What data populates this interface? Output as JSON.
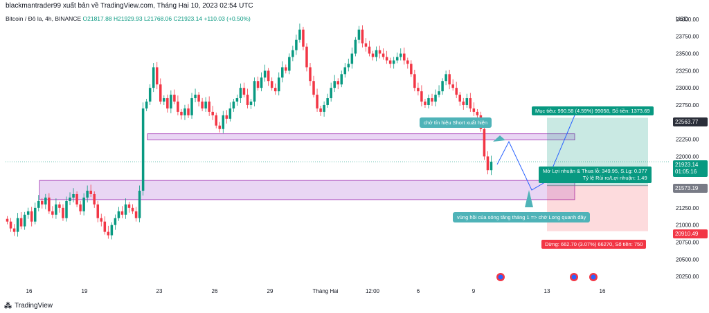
{
  "header": {
    "published": "blackmantrader99 xuất bản về TradingView.com, Tháng Hai 10, 2023 02:54 UTC",
    "symbol": "Bitcoin / Đô la, 4h, BINANCE",
    "o": "O21817.88",
    "h": "H21929.93",
    "l": "L21768.06",
    "c": "C21923.14",
    "chg": "+110.03 (+0.50%)"
  },
  "axis": {
    "currency": "USD",
    "y_ticks": [
      "24000.00",
      "23750.00",
      "23500.00",
      "23250.00",
      "23000.00",
      "22750.00",
      "22500.00",
      "22250.00",
      "22000.00",
      "21750.00",
      "21500.00",
      "21250.00",
      "21000.00",
      "20750.00",
      "20500.00",
      "20250.00"
    ],
    "x_ticks": [
      "16",
      "19",
      "23",
      "26",
      "29",
      "Tháng Hai",
      "12:00",
      "6",
      "9",
      "13",
      "16"
    ]
  },
  "price_tags": {
    "target": "22563.77",
    "current": "21923.14",
    "countdown": "01:05:16",
    "mid": "21573.19",
    "stop": "20910.49"
  },
  "position": {
    "target_label": "Mục tiêu: 990.58 (4.59%) 99058, Số tiền: 1373.69",
    "pnl_label": "Mở Lợi nhuận & Thua lỗ: 349.95, S.Lg: 0.377",
    "ratio_label": "Tỷ lệ Rủi ro/Lợi nhuận: 1.49",
    "stop_label": "Dừng: 662.70 (3.07%) 66270, Số tiền: 750"
  },
  "annotations": {
    "short_note": "chờ tín hiệu Short xuất hiện",
    "long_note": "vùng hồi của sóng tăng tháng 1 => chờ Long quanh đây"
  },
  "footer": {
    "brand": "TradingView"
  },
  "colors": {
    "up": "#089981",
    "down": "#f23645",
    "zone": "#e1c8f0",
    "zone_border": "#9c27b0",
    "target": "#089981",
    "stop": "#f23645",
    "note": "#4fb3b8"
  },
  "chart_data": {
    "type": "candlestick",
    "symbol": "BTCUSD",
    "timeframe": "4h",
    "ylim": [
      20150,
      24100
    ],
    "zones": [
      {
        "from": 22240,
        "to": 22330
      },
      {
        "from": 21370,
        "to": 21650
      }
    ],
    "position": {
      "entry": 21573.19,
      "target": 22563.77,
      "stop": 20910.49
    },
    "closes": [
      21050,
      20950,
      20900,
      21100,
      20980,
      21150,
      21200,
      21050,
      21250,
      21350,
      21300,
      21400,
      21200,
      21150,
      21300,
      21250,
      21100,
      21350,
      21400,
      21450,
      21300,
      21200,
      21400,
      21500,
      21450,
      21300,
      21100,
      21050,
      20900,
      20850,
      21000,
      21100,
      21200,
      21150,
      21300,
      21250,
      21200,
      21100,
      21500,
      22700,
      22800,
      23000,
      23300,
      23050,
      22800,
      22850,
      22700,
      22900,
      22800,
      22650,
      22600,
      22700,
      22600,
      22850,
      22900,
      22800,
      22700,
      22800,
      22650,
      22600,
      22450,
      22400,
      22600,
      22550,
      22700,
      22800,
      22850,
      23000,
      22900,
      22750,
      22800,
      23100,
      23000,
      23150,
      23250,
      23100,
      23000,
      22950,
      23150,
      23300,
      23250,
      23450,
      23550,
      23700,
      23850,
      23600,
      23300,
      23100,
      22900,
      22700,
      22650,
      22750,
      22850,
      23000,
      23100,
      23050,
      23200,
      23300,
      23350,
      23500,
      23700,
      23850,
      23650,
      23600,
      23500,
      23450,
      23550,
      23500,
      23450,
      23400,
      23350,
      23400,
      23450,
      23500,
      23400,
      23350,
      23200,
      23000,
      22950,
      22800,
      22750,
      22850,
      22800,
      22900,
      22950,
      23100,
      23200,
      23050,
      23000,
      22900,
      22800,
      22750,
      22850,
      22700,
      22650,
      22600,
      22400,
      22000,
      21800,
      21923
    ]
  }
}
